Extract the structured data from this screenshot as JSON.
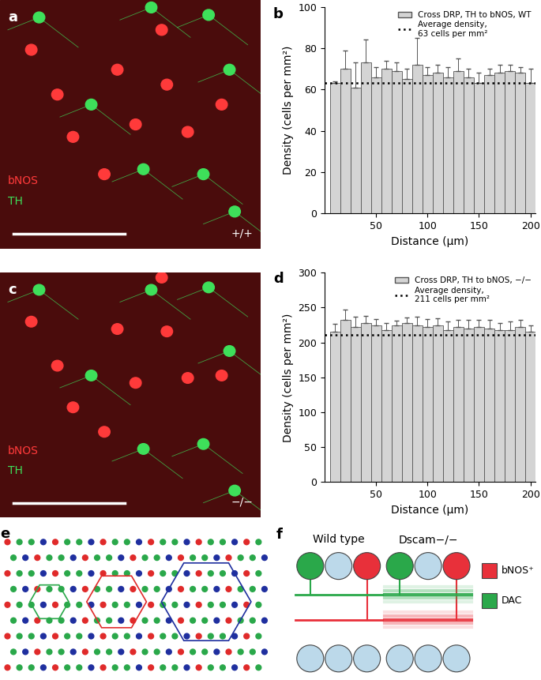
{
  "panel_labels": [
    "a",
    "b",
    "c",
    "d",
    "e",
    "f"
  ],
  "images": [
    {
      "channels": [
        {
          "name": "bNOS",
          "color": "#ff3a3a"
        },
        {
          "name": "TH",
          "color": "#3ee05a"
        }
      ],
      "genotype": "+/+"
    },
    {
      "channels": [
        {
          "name": "bNOS",
          "color": "#ff3a3a"
        },
        {
          "name": "TH",
          "color": "#3ee05a"
        }
      ],
      "genotype": "−/−"
    }
  ],
  "chart_data": [
    {
      "type": "bar",
      "x": [
        10,
        20,
        30,
        40,
        50,
        60,
        70,
        80,
        90,
        100,
        110,
        120,
        130,
        140,
        150,
        160,
        170,
        180,
        190,
        200
      ],
      "series": [
        {
          "name": "Cross DRP, TH to bNOS, WT",
          "color": "#d4d4d4",
          "values": [
            63,
            70,
            61,
            73,
            66,
            70,
            69,
            65,
            72,
            67,
            68,
            66,
            69,
            66,
            63,
            67,
            68,
            69,
            68,
            63
          ],
          "errors": [
            1,
            9,
            12,
            11,
            5,
            4,
            4,
            5,
            13,
            4,
            4,
            5,
            6,
            4,
            5,
            3,
            4,
            3,
            3,
            7
          ]
        }
      ],
      "reference_line": {
        "name": "Average density,\n63 cells per mm²",
        "value": 63,
        "line_style": "dotted"
      },
      "xlabel": "Distance (µm)",
      "ylabel": "Density (cells per mm²)",
      "xlim": [
        0,
        205
      ],
      "xticks": [
        50,
        100,
        150,
        200
      ],
      "ylim": [
        0,
        100
      ],
      "yticks": [
        0,
        20,
        40,
        60,
        80,
        100
      ],
      "legend": "upper right"
    },
    {
      "type": "bar",
      "x": [
        10,
        20,
        30,
        40,
        50,
        60,
        70,
        80,
        90,
        100,
        110,
        120,
        130,
        140,
        150,
        160,
        170,
        180,
        190,
        200
      ],
      "series": [
        {
          "name": "Cross DRP, TH to bNOS, −/−",
          "color": "#d4d4d4",
          "values": [
            215,
            232,
            222,
            228,
            225,
            218,
            225,
            228,
            225,
            222,
            225,
            218,
            222,
            220,
            222,
            220,
            218,
            218,
            222,
            216
          ],
          "errors": [
            12,
            15,
            15,
            10,
            8,
            10,
            6,
            8,
            12,
            12,
            10,
            12,
            10,
            12,
            10,
            12,
            10,
            12,
            10,
            8
          ]
        }
      ],
      "reference_line": {
        "name": "Average density,\n211 cells per mm²",
        "value": 211,
        "line_style": "dotted"
      },
      "xlabel": "Distance (µm)",
      "ylabel": "Density (cells per mm²)",
      "xlim": [
        0,
        205
      ],
      "xticks": [
        50,
        100,
        150,
        200
      ],
      "ylim": [
        0,
        300
      ],
      "yticks": [
        0,
        50,
        100,
        150,
        200,
        250,
        300
      ],
      "legend": "upper right"
    }
  ],
  "diagram_f": {
    "columns": [
      "Wild type",
      "Dscam−/−"
    ],
    "legend": [
      {
        "name": "bNOS⁺",
        "color": "#e8303a"
      },
      {
        "name": "DAC",
        "color": "#2aa84a"
      }
    ]
  }
}
